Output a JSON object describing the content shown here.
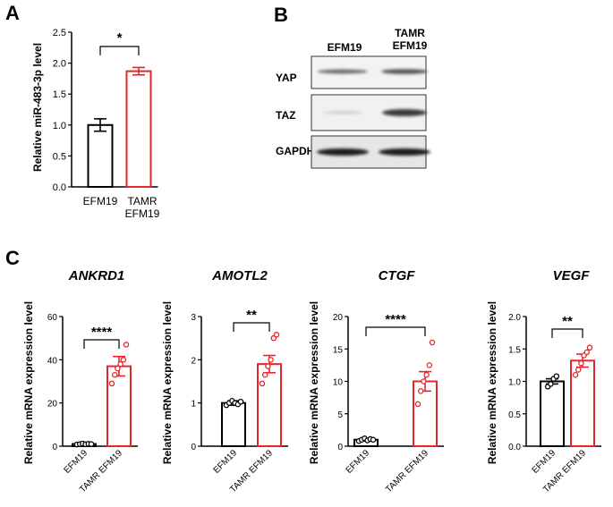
{
  "panels": {
    "a": "A",
    "b": "B",
    "c": "C"
  },
  "colors": {
    "control": "#000000",
    "tamr": "#e8242a"
  },
  "chart_data": [
    {
      "id": "mir483",
      "type": "bar",
      "title": "",
      "ylabel": "Relative miR-483-3p level",
      "categories": [
        "EFM19",
        "TAMR EFM19"
      ],
      "values": [
        1.0,
        1.87
      ],
      "errors": [
        0.1,
        0.06
      ],
      "ylim": [
        0,
        2.5
      ],
      "yticks": [
        "0.0",
        "0.5",
        "1.0",
        "1.5",
        "2.0",
        "2.5"
      ],
      "significance": "*"
    },
    {
      "id": "ankrd1",
      "type": "bar",
      "title": "ANKRD1",
      "ylabel": "Relative mRNA expression level",
      "categories": [
        "EFM19",
        "TAMR EFM19"
      ],
      "values": [
        1.0,
        37.0
      ],
      "errors": [
        0.3,
        4.5
      ],
      "points": [
        [
          0.8,
          1.0,
          1.2,
          0.9,
          1.1,
          1.0
        ],
        [
          29,
          33,
          36,
          38,
          40,
          47
        ]
      ],
      "ylim": [
        0,
        60
      ],
      "yticks": [
        "0",
        "20",
        "40",
        "60"
      ],
      "significance": "****"
    },
    {
      "id": "amotl2",
      "type": "bar",
      "title": "AMOTL2",
      "ylabel": "Relative mRNA expression level",
      "categories": [
        "EFM19",
        "TAMR EFM19"
      ],
      "values": [
        1.0,
        1.9
      ],
      "errors": [
        0.05,
        0.2
      ],
      "points": [
        [
          0.95,
          1.0,
          1.05,
          1.0,
          0.97,
          1.03
        ],
        [
          1.45,
          1.65,
          1.85,
          2.0,
          2.5,
          2.58
        ]
      ],
      "ylim": [
        0,
        3
      ],
      "yticks": [
        "0",
        "1",
        "2",
        "3"
      ],
      "significance": "**"
    },
    {
      "id": "ctgf",
      "type": "bar",
      "title": "CTGF",
      "ylabel": "Relative mRNA expression level",
      "categories": [
        "EFM19",
        "TAMR EFM19"
      ],
      "values": [
        1.0,
        10.0
      ],
      "errors": [
        0.2,
        1.5
      ],
      "points": [
        [
          0.8,
          1.0,
          1.2,
          0.9,
          1.1,
          1.0
        ],
        [
          6.5,
          8.5,
          10.0,
          11.0,
          12.5,
          16.0
        ]
      ],
      "ylim": [
        0,
        20
      ],
      "yticks": [
        "0",
        "5",
        "10",
        "15",
        "20"
      ],
      "significance": "****"
    },
    {
      "id": "vegf",
      "type": "bar",
      "title": "VEGF",
      "ylabel": "Relative mRNA expression level",
      "categories": [
        "EFM19",
        "TAMR EFM19"
      ],
      "values": [
        1.0,
        1.32
      ],
      "errors": [
        0.04,
        0.1
      ],
      "points": [
        [
          0.92,
          0.96,
          1.04,
          1.08
        ],
        [
          1.1,
          1.18,
          1.28,
          1.4,
          1.45,
          1.52
        ]
      ],
      "ylim": [
        0,
        2.0
      ],
      "yticks": [
        "0.0",
        "0.5",
        "1.0",
        "1.5",
        "2.0"
      ],
      "significance": "**"
    }
  ],
  "western_blot": {
    "lanes": [
      "EFM19",
      "TAMR",
      "EFM19"
    ],
    "rows": [
      "YAP",
      "TAZ",
      "GAPDH"
    ]
  }
}
